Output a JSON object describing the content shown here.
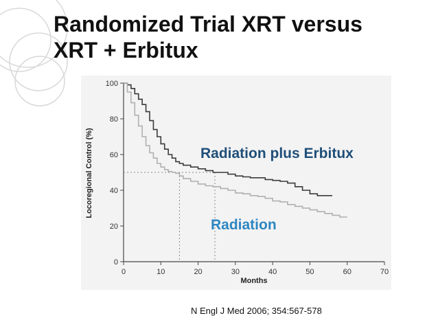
{
  "slide": {
    "title_line1": "Randomized Trial XRT versus",
    "title_line2": "XRT + Erbitux",
    "citation": "N Engl J Med 2006; 354:567-578"
  },
  "colors": {
    "plus_label": "#1f4e79",
    "radiation_label": "#2e86c1",
    "plus_line": "#3a3a3a",
    "radiation_line": "#b0b0b0"
  },
  "chart_data": {
    "type": "line",
    "xlabel": "Months",
    "ylabel": "Locoregional Control (%)",
    "xlim": [
      0,
      70
    ],
    "ylim": [
      0,
      100
    ],
    "xticks": [
      0,
      10,
      20,
      30,
      40,
      50,
      60,
      70
    ],
    "yticks": [
      0,
      20,
      40,
      60,
      80,
      100
    ],
    "median_reference": {
      "y": 50,
      "x_radiation": 15,
      "x_plus": 24.5
    },
    "series": [
      {
        "name": "Radiation plus Erbitux",
        "x": [
          0,
          1,
          2,
          3,
          4,
          5,
          6,
          7,
          8,
          9,
          10,
          11,
          12,
          13,
          14,
          15,
          16,
          18,
          20,
          22,
          24,
          26,
          28,
          30,
          32,
          34,
          36,
          38,
          40,
          42,
          44,
          46,
          48,
          50,
          52,
          54,
          56
        ],
        "y": [
          100,
          99,
          97,
          94,
          91,
          88,
          84,
          79,
          74,
          70,
          66,
          63,
          60,
          58,
          56,
          55,
          54,
          53,
          52,
          51,
          50,
          50,
          49,
          48,
          47.5,
          47,
          47,
          46,
          45.5,
          45,
          44,
          42,
          40,
          38,
          37,
          37,
          37
        ]
      },
      {
        "name": "Radiation",
        "x": [
          0,
          1,
          2,
          3,
          4,
          5,
          6,
          7,
          8,
          9,
          10,
          11,
          12,
          13,
          14,
          15,
          16,
          18,
          20,
          22,
          24,
          26,
          28,
          30,
          32,
          34,
          36,
          38,
          40,
          42,
          44,
          46,
          48,
          50,
          52,
          54,
          56,
          58,
          60
        ],
        "y": [
          100,
          95,
          89,
          82,
          76,
          70,
          65,
          61,
          58,
          55,
          53,
          51.5,
          50.5,
          50,
          49.5,
          48,
          46.5,
          45,
          43.5,
          42.5,
          42,
          41,
          40,
          38.5,
          38,
          37,
          36.5,
          35.5,
          34,
          33.5,
          32,
          31,
          30,
          29,
          28,
          27,
          26,
          25,
          25
        ]
      }
    ]
  }
}
